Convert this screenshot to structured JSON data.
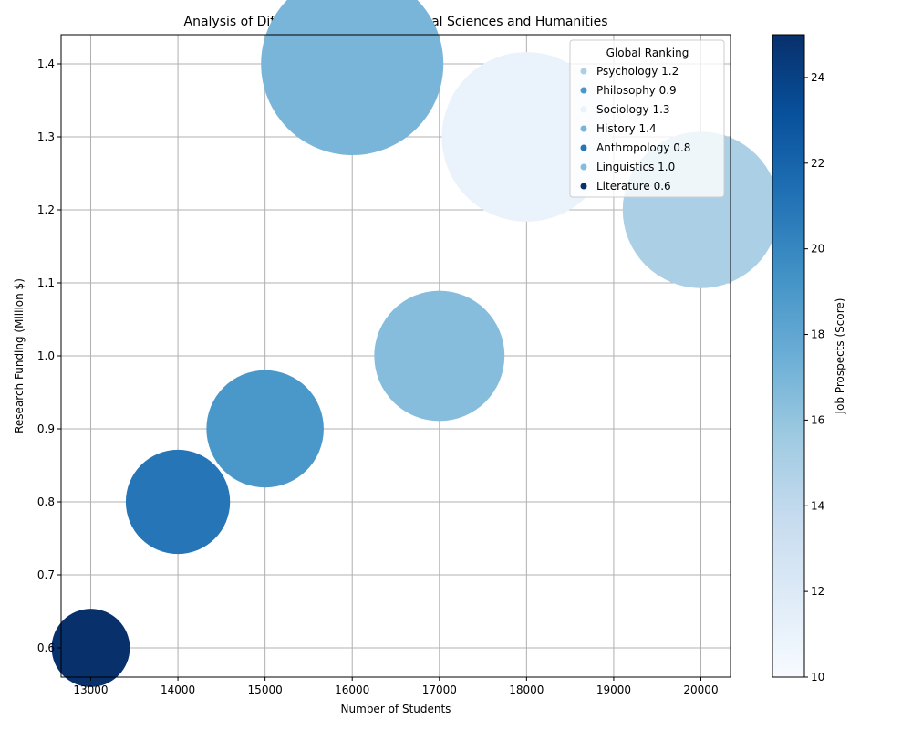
{
  "chart_data": {
    "type": "scatter",
    "title": "Analysis of Different Disciplines in Social Sciences and Humanities",
    "xlabel": "Number of Students",
    "ylabel": "Research Funding (Million $)",
    "xlim": [
      12660,
      20340
    ],
    "ylim": [
      0.56,
      1.44
    ],
    "xticks": [
      "13000",
      "14000",
      "15000",
      "16000",
      "17000",
      "18000",
      "19000",
      "20000"
    ],
    "yticks": [
      "0.6",
      "0.7",
      "0.8",
      "0.9",
      "1.0",
      "1.1",
      "1.2",
      "1.3",
      "1.4"
    ],
    "grid": true,
    "legend": {
      "title": "Global Ranking",
      "placement": "top-right",
      "entries": [
        "Psychology 1.2",
        "Philosophy 0.9",
        "Sociology 1.3",
        "History 1.4",
        "Anthropology 0.8",
        "Linguistics 1.0",
        "Literature 0.6"
      ]
    },
    "colorbar": {
      "label": "Job Prospects (Score)",
      "min": 10,
      "max": 25,
      "ticks": [
        "10",
        "12",
        "14",
        "16",
        "18",
        "20",
        "22",
        "24"
      ],
      "colormap": "Blues"
    },
    "points": [
      {
        "label": "Psychology",
        "x": 20000,
        "y": 1.2,
        "size": 1.2,
        "color_value": 15
      },
      {
        "label": "Philosophy",
        "x": 15000,
        "y": 0.9,
        "size": 0.9,
        "color_value": 19
      },
      {
        "label": "Sociology",
        "x": 18000,
        "y": 1.3,
        "size": 1.3,
        "color_value": 11
      },
      {
        "label": "History",
        "x": 16000,
        "y": 1.4,
        "size": 1.4,
        "color_value": 17
      },
      {
        "label": "Anthropology",
        "x": 14000,
        "y": 0.8,
        "size": 0.8,
        "color_value": 21
      },
      {
        "label": "Linguistics",
        "x": 17000,
        "y": 1.0,
        "size": 1.0,
        "color_value": 16.5
      },
      {
        "label": "Literature",
        "x": 13000,
        "y": 0.6,
        "size": 0.6,
        "color_value": 25
      }
    ]
  }
}
